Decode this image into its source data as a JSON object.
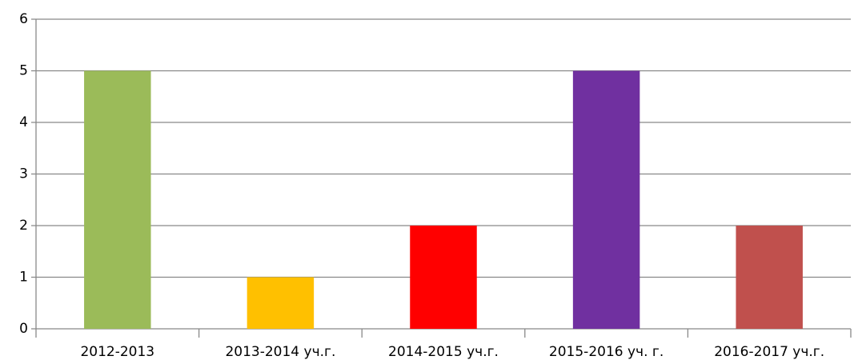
{
  "chart_data": {
    "type": "bar",
    "categories": [
      "2012-2013",
      "2013-2014 уч.г.",
      "2014-2015 уч.г.",
      "2015-2016 уч. г.",
      "2016-2017 уч.г."
    ],
    "values": [
      5,
      1,
      2,
      5,
      2
    ],
    "colors": [
      "#9bbb59",
      "#ffc000",
      "#ff0000",
      "#7030a0",
      "#c0504d"
    ],
    "ylim": [
      0,
      6
    ],
    "yticks": [
      0,
      1,
      2,
      3,
      4,
      5,
      6
    ],
    "grid": true
  }
}
